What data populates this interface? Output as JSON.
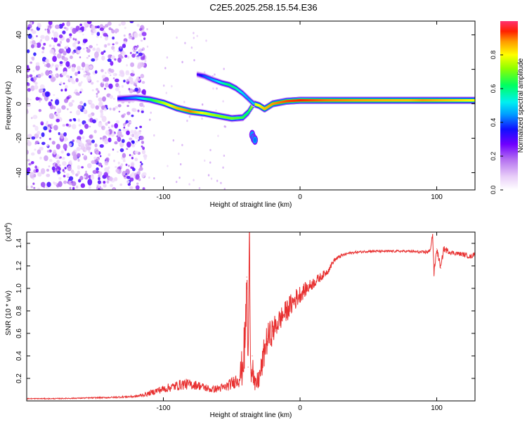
{
  "figure_title": "C2E5.2025.258.15.54.E36",
  "chart_data": [
    {
      "id": "spectrogram",
      "type": "heatmap",
      "title": "",
      "xlabel": "Height of straight line (km)",
      "ylabel": "Frequency (Hz)",
      "xlim": [
        -200,
        128
      ],
      "ylim": [
        -50,
        48
      ],
      "x_ticks": [
        {
          "value": -100,
          "label": "-100"
        },
        {
          "value": 0,
          "label": "0"
        },
        {
          "value": 100,
          "label": "100"
        }
      ],
      "y_ticks": [
        {
          "value": -40,
          "label": "-40"
        },
        {
          "value": -20,
          "label": "-20"
        },
        {
          "value": 0,
          "label": "0"
        },
        {
          "value": 20,
          "label": "20"
        },
        {
          "value": 40,
          "label": "40"
        }
      ],
      "colorbar": {
        "label": "Normalized spectral amplitude",
        "range": [
          0,
          1
        ],
        "ticks": [
          {
            "value": 0.0,
            "label": "0.0"
          },
          {
            "value": 0.2,
            "label": "0.2"
          },
          {
            "value": 0.4,
            "label": "0.4"
          },
          {
            "value": 0.6,
            "label": "0.6"
          },
          {
            "value": 0.8,
            "label": "0.8"
          }
        ],
        "stops": [
          {
            "value": 0.0,
            "color": "#ffffff"
          },
          {
            "value": 0.08,
            "color": "#e8cdf8"
          },
          {
            "value": 0.18,
            "color": "#b470f0"
          },
          {
            "value": 0.27,
            "color": "#7000ff"
          },
          {
            "value": 0.36,
            "color": "#1010ff"
          },
          {
            "value": 0.45,
            "color": "#00a0ff"
          },
          {
            "value": 0.52,
            "color": "#00f0f0"
          },
          {
            "value": 0.62,
            "color": "#00ff60"
          },
          {
            "value": 0.72,
            "color": "#90ff00"
          },
          {
            "value": 0.8,
            "color": "#ffff00"
          },
          {
            "value": 0.88,
            "color": "#ff9900"
          },
          {
            "value": 0.94,
            "color": "#ff2000"
          },
          {
            "value": 1.0,
            "color": "#ff3070"
          }
        ]
      },
      "features": {
        "noise_region_x": [
          -200,
          -113
        ],
        "main_track": {
          "x": [
            -133,
            -120,
            -110,
            -100,
            -90,
            -80,
            -70,
            -60,
            -50,
            -42,
            -38,
            -34,
            -30,
            -26,
            -20,
            -10,
            0,
            20,
            40,
            60,
            80,
            90,
            100,
            110,
            128
          ],
          "y": [
            3,
            3.5,
            2.5,
            0.5,
            -2.5,
            -4.5,
            -5.5,
            -7,
            -8.5,
            -8,
            -5,
            0,
            -1,
            -3,
            0,
            1.5,
            2,
            2,
            2,
            2,
            2,
            2,
            2,
            2,
            2
          ],
          "amplitude": [
            0.35,
            0.45,
            0.6,
            0.75,
            0.85,
            0.9,
            0.78,
            0.72,
            0.7,
            0.65,
            0.6,
            0.78,
            0.8,
            0.85,
            0.88,
            0.92,
            0.94,
            0.9,
            0.88,
            0.86,
            0.85,
            0.88,
            0.86,
            0.84,
            0.8
          ]
        },
        "upper_branch": {
          "x": [
            -75,
            -70,
            -64,
            -57,
            -52,
            -47,
            -42,
            -38,
            -34
          ],
          "y": [
            17,
            16,
            14,
            12,
            11,
            9,
            6,
            3,
            0
          ],
          "amplitude": [
            0.3,
            0.4,
            0.45,
            0.55,
            0.62,
            0.58,
            0.5,
            0.45,
            0.5
          ]
        },
        "lower_blob": {
          "x": [
            -35,
            -34,
            -33
          ],
          "y": [
            -18,
            -20,
            -21
          ],
          "amplitude": [
            0.45,
            0.5,
            0.42
          ]
        }
      }
    },
    {
      "id": "snr",
      "type": "line",
      "title": "",
      "xlabel": "Height of straight line (km)",
      "ylabel": "SNR (10 * v/v)",
      "y_multiplier_label": "(x10",
      "y_multiplier_exp": "4",
      "y_multiplier_close": ")",
      "xlim": [
        -200,
        128
      ],
      "ylim": [
        0,
        1.5
      ],
      "x_ticks": [
        {
          "value": -100,
          "label": "-100"
        },
        {
          "value": 0,
          "label": "0"
        },
        {
          "value": 100,
          "label": "100"
        }
      ],
      "y_ticks": [
        {
          "value": 0.2,
          "label": "0.2"
        },
        {
          "value": 0.4,
          "label": "0.4"
        },
        {
          "value": 0.6,
          "label": "0.6"
        },
        {
          "value": 0.8,
          "label": "0.8"
        },
        {
          "value": 1.0,
          "label": "1.0"
        },
        {
          "value": 1.2,
          "label": "1.2"
        },
        {
          "value": 1.4,
          "label": "1.4"
        }
      ],
      "series": [
        {
          "name": "SNR",
          "color": "#e83030",
          "x": [
            -200,
            -180,
            -160,
            -140,
            -120,
            -112,
            -105,
            -95,
            -85,
            -75,
            -65,
            -55,
            -48,
            -44,
            -42,
            -40,
            -39,
            -38,
            -37,
            -36,
            -35,
            -34,
            -33,
            -32,
            -30,
            -28,
            -26,
            -24,
            -20,
            -15,
            -10,
            -5,
            0,
            5,
            10,
            15,
            20,
            25,
            30,
            35,
            40,
            50,
            60,
            70,
            80,
            90,
            95,
            97,
            98,
            100,
            103,
            105,
            110,
            115,
            120,
            125,
            128
          ],
          "y": [
            0.02,
            0.02,
            0.025,
            0.03,
            0.04,
            0.06,
            0.09,
            0.12,
            0.15,
            0.14,
            0.1,
            0.12,
            0.17,
            0.22,
            0.32,
            0.55,
            1.1,
            0.3,
            1.45,
            0.25,
            0.4,
            0.2,
            0.12,
            0.15,
            0.2,
            0.3,
            0.45,
            0.55,
            0.62,
            0.72,
            0.8,
            0.88,
            0.95,
            1.0,
            1.05,
            1.1,
            1.15,
            1.25,
            1.29,
            1.31,
            1.32,
            1.33,
            1.33,
            1.33,
            1.33,
            1.32,
            1.33,
            1.48,
            1.13,
            1.35,
            1.18,
            1.35,
            1.32,
            1.31,
            1.3,
            1.28,
            1.31
          ],
          "noise_amplitude": [
            0.004,
            0.004,
            0.005,
            0.006,
            0.01,
            0.02,
            0.03,
            0.04,
            0.05,
            0.04,
            0.03,
            0.04,
            0.06,
            0.1,
            0.2,
            0.25,
            0.25,
            0.25,
            0.2,
            0.2,
            0.2,
            0.1,
            0.08,
            0.08,
            0.1,
            0.12,
            0.14,
            0.14,
            0.12,
            0.1,
            0.1,
            0.1,
            0.08,
            0.06,
            0.05,
            0.04,
            0.03,
            0.02,
            0.015,
            0.012,
            0.01,
            0.01,
            0.01,
            0.01,
            0.01,
            0.015,
            0.02,
            0.03,
            0.03,
            0.03,
            0.03,
            0.03,
            0.02,
            0.02,
            0.02,
            0.02,
            0.02
          ]
        }
      ]
    }
  ]
}
